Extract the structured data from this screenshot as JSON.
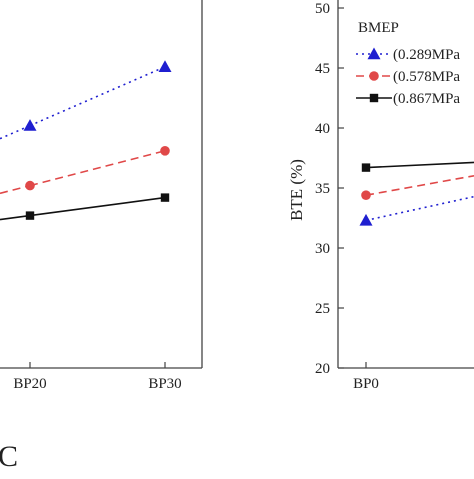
{
  "chart_data": [
    {
      "type": "line",
      "categories": [
        "BP20",
        "BP30"
      ],
      "xlabel": "",
      "ylabel": "",
      "series": [
        {
          "name": "(0.289MPa",
          "values": [
            40.2,
            45.1
          ],
          "color": "#1f1fd0",
          "marker": "triangle",
          "dash": "dotted"
        },
        {
          "name": "(0.578MPa",
          "values": [
            35.2,
            38.1
          ],
          "color": "#e04848",
          "marker": "circle",
          "dash": "dashed"
        },
        {
          "name": "(0.867MPa",
          "values": [
            32.7,
            34.2
          ],
          "color": "#111111",
          "marker": "square",
          "dash": "solid"
        }
      ],
      "panel_label": "C"
    },
    {
      "type": "line",
      "categories": [
        "BP0"
      ],
      "xlabel": "",
      "ylabel": "BTE (%)",
      "ylim": [
        20,
        50
      ],
      "yticks": [
        20,
        25,
        30,
        35,
        40,
        45,
        50
      ],
      "series": [
        {
          "name": "(0.289MPa",
          "values": [
            32.3
          ],
          "color": "#1f1fd0",
          "marker": "triangle",
          "dash": "dotted"
        },
        {
          "name": "(0.578MPa",
          "values": [
            34.4
          ],
          "color": "#e04848",
          "marker": "circle",
          "dash": "dashed"
        },
        {
          "name": "(0.867MPa",
          "values": [
            36.7
          ],
          "color": "#111111",
          "marker": "square",
          "dash": "solid"
        }
      ],
      "legend": {
        "title": "BMEP",
        "placement": "top-left"
      }
    }
  ]
}
